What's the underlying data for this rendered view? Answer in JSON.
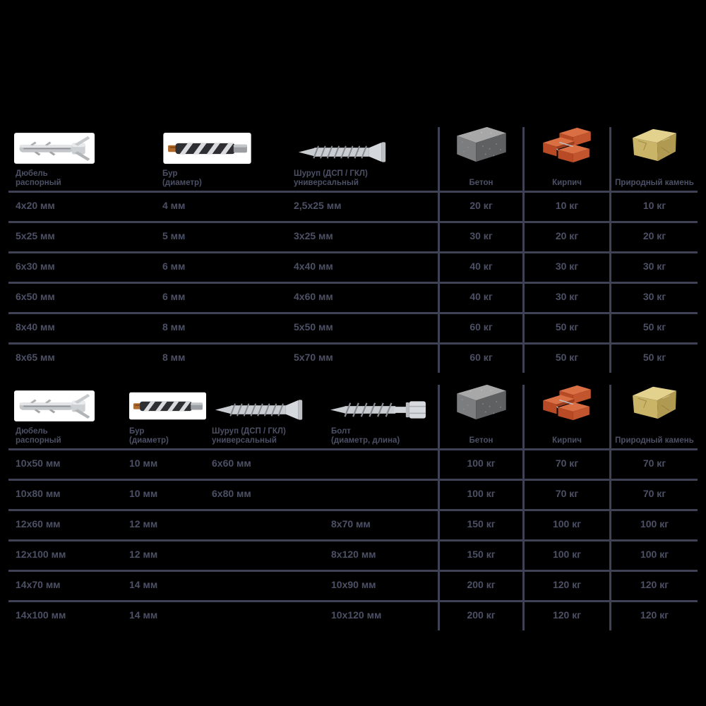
{
  "colors": {
    "background": "#000000",
    "text": "#4c5065",
    "line": "#3e4254",
    "panel": "#ffffff",
    "metal": "#c9ccd1",
    "metal_dark": "#878b92",
    "drill_body": "#2f2f33",
    "drill_tip": "#b06a2a",
    "block_top": "#a8a8a8",
    "block_front": "#7c7d7f",
    "block_side": "#5f6062",
    "brick_top": "#d96f43",
    "brick_front": "#b84a26",
    "brick_side": "#c2552e",
    "stone_top": "#e3d28e",
    "stone_front": "#c9b468",
    "stone_side": "#b09a52"
  },
  "units": {
    "millimeters": "мм",
    "kilograms": "кг"
  },
  "chart_data": [
    {
      "type": "table",
      "columns": [
        {
          "icon": "dowel-icon",
          "label_lines": [
            "Дюбель",
            "распорный"
          ]
        },
        {
          "icon": "drill-icon",
          "label_lines": [
            "Бур",
            "(диаметр)"
          ]
        },
        {
          "icon": "screw-icon",
          "label_lines": [
            "Шуруп (ДСП / ГКЛ)",
            "универсальный"
          ]
        },
        {
          "icon": "concrete-block-icon",
          "label_lines": [
            "Бетон"
          ]
        },
        {
          "icon": "bricks-icon",
          "label_lines": [
            "Кирпич"
          ]
        },
        {
          "icon": "stone-icon",
          "label_lines": [
            "Природный камень"
          ]
        }
      ],
      "rows": [
        [
          "4x20 мм",
          "4 мм",
          "2,5x25 мм",
          "20 кг",
          "10 кг",
          "10 кг"
        ],
        [
          "5x25 мм",
          "5 мм",
          "3x25 мм",
          "30 кг",
          "20 кг",
          "20 кг"
        ],
        [
          "6x30 мм",
          "6 мм",
          "4x40 мм",
          "40 кг",
          "30 кг",
          "30 кг"
        ],
        [
          "6x50 мм",
          "6 мм",
          "4x60 мм",
          "40 кг",
          "30 кг",
          "30 кг"
        ],
        [
          "8x40 мм",
          "8 мм",
          "5x50 мм",
          "60 кг",
          "50 кг",
          "50 кг"
        ],
        [
          "8x65 мм",
          "8 мм",
          "5x70 мм",
          "60 кг",
          "50 кг",
          "50 кг"
        ]
      ]
    },
    {
      "type": "table",
      "columns": [
        {
          "icon": "dowel-icon",
          "label_lines": [
            "Дюбель",
            "распорный"
          ]
        },
        {
          "icon": "drill-icon",
          "label_lines": [
            "Бур",
            "(диаметр)"
          ]
        },
        {
          "icon": "screw-icon",
          "label_lines": [
            "Шуруп (ДСП / ГКЛ)",
            "универсальный"
          ]
        },
        {
          "icon": "bolt-icon",
          "label_lines": [
            "Болт",
            "(диаметр, длина)"
          ]
        },
        {
          "icon": "concrete-block-icon",
          "label_lines": [
            "Бетон"
          ]
        },
        {
          "icon": "bricks-icon",
          "label_lines": [
            "Кирпич"
          ]
        },
        {
          "icon": "stone-icon",
          "label_lines": [
            "Природный камень"
          ]
        }
      ],
      "rows": [
        [
          "10x50 мм",
          "10 мм",
          "6x60 мм",
          "",
          "100 кг",
          "70 кг",
          "70 кг"
        ],
        [
          "10x80 мм",
          "10 мм",
          "6x80 мм",
          "",
          "100 кг",
          "70 кг",
          "70 кг"
        ],
        [
          "12x60 мм",
          "12 мм",
          "",
          "8x70 мм",
          "150 кг",
          "100 кг",
          "100 кг"
        ],
        [
          "12x100 мм",
          "12 мм",
          "",
          "8x120 мм",
          "150 кг",
          "100 кг",
          "100 кг"
        ],
        [
          "14x70 мм",
          "14 мм",
          "",
          "10x90 мм",
          "200 кг",
          "120 кг",
          "120 кг"
        ],
        [
          "14x100 мм",
          "14 мм",
          "",
          "10x120 мм",
          "200 кг",
          "120 кг",
          "120 кг"
        ]
      ]
    }
  ]
}
